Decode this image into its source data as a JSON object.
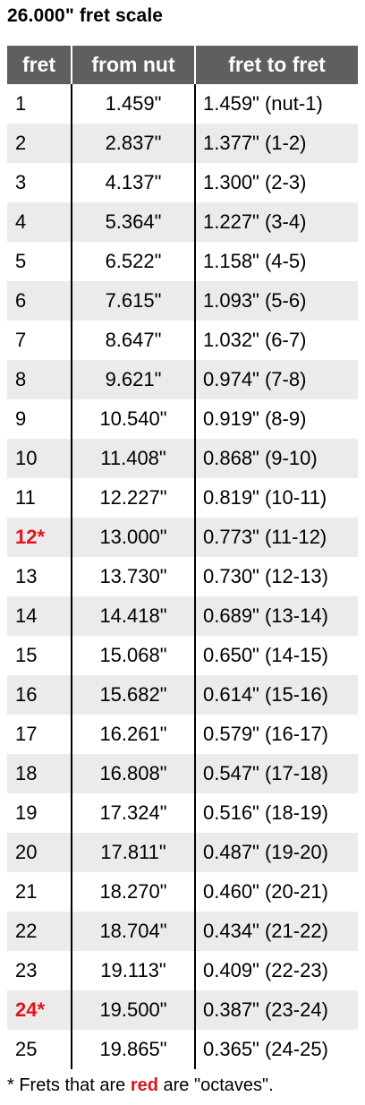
{
  "title": "26.000\" fret scale",
  "columns": [
    "fret",
    "from nut",
    "fret to fret"
  ],
  "rows": [
    {
      "fret": "1",
      "from_nut": "1.459\"",
      "fret_to_fret": "1.459\" (nut-1)",
      "octave": false
    },
    {
      "fret": "2",
      "from_nut": "2.837\"",
      "fret_to_fret": "1.377\" (1-2)",
      "octave": false
    },
    {
      "fret": "3",
      "from_nut": "4.137\"",
      "fret_to_fret": "1.300\" (2-3)",
      "octave": false
    },
    {
      "fret": "4",
      "from_nut": "5.364\"",
      "fret_to_fret": "1.227\" (3-4)",
      "octave": false
    },
    {
      "fret": "5",
      "from_nut": "6.522\"",
      "fret_to_fret": "1.158\" (4-5)",
      "octave": false
    },
    {
      "fret": "6",
      "from_nut": "7.615\"",
      "fret_to_fret": "1.093\" (5-6)",
      "octave": false
    },
    {
      "fret": "7",
      "from_nut": "8.647\"",
      "fret_to_fret": "1.032\" (6-7)",
      "octave": false
    },
    {
      "fret": "8",
      "from_nut": "9.621\"",
      "fret_to_fret": "0.974\" (7-8)",
      "octave": false
    },
    {
      "fret": "9",
      "from_nut": "10.540\"",
      "fret_to_fret": "0.919\" (8-9)",
      "octave": false
    },
    {
      "fret": "10",
      "from_nut": "11.408\"",
      "fret_to_fret": "0.868\" (9-10)",
      "octave": false
    },
    {
      "fret": "11",
      "from_nut": "12.227\"",
      "fret_to_fret": "0.819\" (10-11)",
      "octave": false
    },
    {
      "fret": "12*",
      "from_nut": "13.000\"",
      "fret_to_fret": "0.773\" (11-12)",
      "octave": true
    },
    {
      "fret": "13",
      "from_nut": "13.730\"",
      "fret_to_fret": "0.730\" (12-13)",
      "octave": false
    },
    {
      "fret": "14",
      "from_nut": "14.418\"",
      "fret_to_fret": "0.689\" (13-14)",
      "octave": false
    },
    {
      "fret": "15",
      "from_nut": "15.068\"",
      "fret_to_fret": "0.650\" (14-15)",
      "octave": false
    },
    {
      "fret": "16",
      "from_nut": "15.682\"",
      "fret_to_fret": "0.614\" (15-16)",
      "octave": false
    },
    {
      "fret": "17",
      "from_nut": "16.261\"",
      "fret_to_fret": "0.579\" (16-17)",
      "octave": false
    },
    {
      "fret": "18",
      "from_nut": "16.808\"",
      "fret_to_fret": "0.547\" (17-18)",
      "octave": false
    },
    {
      "fret": "19",
      "from_nut": "17.324\"",
      "fret_to_fret": "0.516\" (18-19)",
      "octave": false
    },
    {
      "fret": "20",
      "from_nut": "17.811\"",
      "fret_to_fret": "0.487\" (19-20)",
      "octave": false
    },
    {
      "fret": "21",
      "from_nut": "18.270\"",
      "fret_to_fret": "0.460\" (20-21)",
      "octave": false
    },
    {
      "fret": "22",
      "from_nut": "18.704\"",
      "fret_to_fret": "0.434\" (21-22)",
      "octave": false
    },
    {
      "fret": "23",
      "from_nut": "19.113\"",
      "fret_to_fret": "0.409\" (22-23)",
      "octave": false
    },
    {
      "fret": "24*",
      "from_nut": "19.500\"",
      "fret_to_fret": "0.387\" (23-24)",
      "octave": true
    },
    {
      "fret": "25",
      "from_nut": "19.865\"",
      "fret_to_fret": "0.365\" (24-25)",
      "octave": false
    }
  ],
  "footnote": {
    "prefix": "* Frets that are ",
    "highlight": "red",
    "suffix": " are \"octaves\"."
  },
  "colors": {
    "header_bg": "#5f5f5f",
    "stripe_bg": "#ebebeb",
    "octave_red": "#e3121b"
  }
}
